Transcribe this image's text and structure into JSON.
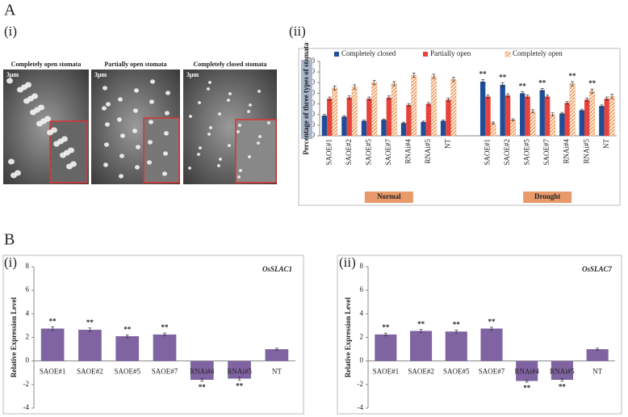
{
  "panel_labels": {
    "a": "A",
    "a_i": "(i)",
    "a_ii": "(ii)",
    "b": "B",
    "b_i": "(i)",
    "b_ii": "(ii)"
  },
  "micrographs": [
    {
      "caption": "Completely open stomata",
      "scale": "3μm"
    },
    {
      "caption": "Partially open stomata",
      "scale": "3μm"
    },
    {
      "caption": "Completely closed stomata",
      "scale": "3μm"
    }
  ],
  "chart_data": [
    {
      "type": "bar",
      "ylabel": "Percentage of three types of stomata",
      "categories": [
        "SAOE#1",
        "SAOE#2",
        "SAOE#5",
        "SAOE#7",
        "RNAi#4",
        "RNAi#5",
        "NT",
        "SAOE#1",
        "SAOE#2",
        "SAOE#5",
        "SAOE#7",
        "RNAi#4",
        "RNAi#5",
        "NT"
      ],
      "groups": [
        "Normal",
        "Drought"
      ],
      "series": [
        {
          "name": "Completely closed",
          "color": "#1f4e99",
          "hatch": false,
          "values": [
            19,
            18,
            14,
            15,
            12,
            13,
            14,
            51,
            48,
            40,
            43,
            21,
            24,
            28
          ],
          "errors": [
            1,
            1,
            0.8,
            0.8,
            0.8,
            0.8,
            0.8,
            2,
            2,
            1.5,
            1.5,
            1,
            1,
            1
          ],
          "significance": [
            null,
            null,
            null,
            null,
            null,
            null,
            null,
            "**",
            "**",
            "**",
            "**",
            null,
            null,
            null
          ]
        },
        {
          "name": "Partially open",
          "color": "#e8423c",
          "hatch": false,
          "values": [
            35,
            36,
            35,
            36,
            29,
            30,
            34,
            37,
            38,
            37,
            37,
            31,
            34,
            35
          ],
          "errors": [
            1.5,
            1.5,
            1.5,
            1.5,
            1.2,
            1.2,
            1.5,
            1.5,
            1.5,
            1.5,
            1.5,
            1.2,
            1.5,
            1.5
          ],
          "significance": [
            null,
            null,
            null,
            null,
            null,
            null,
            null,
            null,
            null,
            null,
            null,
            null,
            null,
            null
          ]
        },
        {
          "name": "Completely open",
          "color": "#f09a5c",
          "hatch": true,
          "values": [
            45,
            46,
            50,
            49,
            57,
            56,
            53,
            12,
            15,
            23,
            20,
            49,
            42,
            37
          ],
          "errors": [
            2,
            2,
            2,
            2,
            2,
            2,
            2,
            1,
            1,
            1.5,
            1.5,
            2,
            2,
            2
          ],
          "significance": [
            null,
            null,
            null,
            null,
            null,
            null,
            null,
            null,
            null,
            null,
            null,
            "**",
            "**",
            null
          ]
        }
      ],
      "ylim": [
        0,
        70
      ],
      "yticks": [
        0,
        10,
        20,
        30,
        40,
        50,
        60,
        70
      ],
      "legend": "top"
    },
    {
      "type": "bar",
      "title": "OsSLAC1",
      "ylabel": "Relative Expression Level",
      "categories": [
        "SAOE#1",
        "SAOE#2",
        "SAOE#5",
        "SAOE#7",
        "RNAi#4",
        "RNAi#5",
        "NT"
      ],
      "values": [
        2.75,
        2.65,
        2.1,
        2.25,
        -1.6,
        -1.5,
        1.0
      ],
      "errors": [
        0.15,
        0.15,
        0.12,
        0.12,
        0.12,
        0.12,
        0.08
      ],
      "significance": [
        "**",
        "**",
        "**",
        "**",
        "**",
        "**",
        null
      ],
      "color": "#8064a2",
      "ylim": [
        -4,
        8
      ],
      "yticks": [
        -4,
        -2,
        0,
        2,
        4,
        6,
        8
      ]
    },
    {
      "type": "bar",
      "title": "OsSLAC7",
      "ylabel": "Relative Expression Level",
      "categories": [
        "SAOE#1",
        "SAOE#2",
        "SAOE#5",
        "SAOE#7",
        "RNAi#4",
        "RNAi#5",
        "NT"
      ],
      "values": [
        2.25,
        2.55,
        2.5,
        2.75,
        -1.7,
        -1.6,
        1.0
      ],
      "errors": [
        0.12,
        0.12,
        0.12,
        0.12,
        0.1,
        0.1,
        0.08
      ],
      "significance": [
        "**",
        "**",
        "**",
        "**",
        "**",
        "**",
        null
      ],
      "color": "#8064a2",
      "ylim": [
        -4,
        8
      ],
      "yticks": [
        -4,
        -2,
        0,
        2,
        4,
        6,
        8
      ]
    }
  ]
}
